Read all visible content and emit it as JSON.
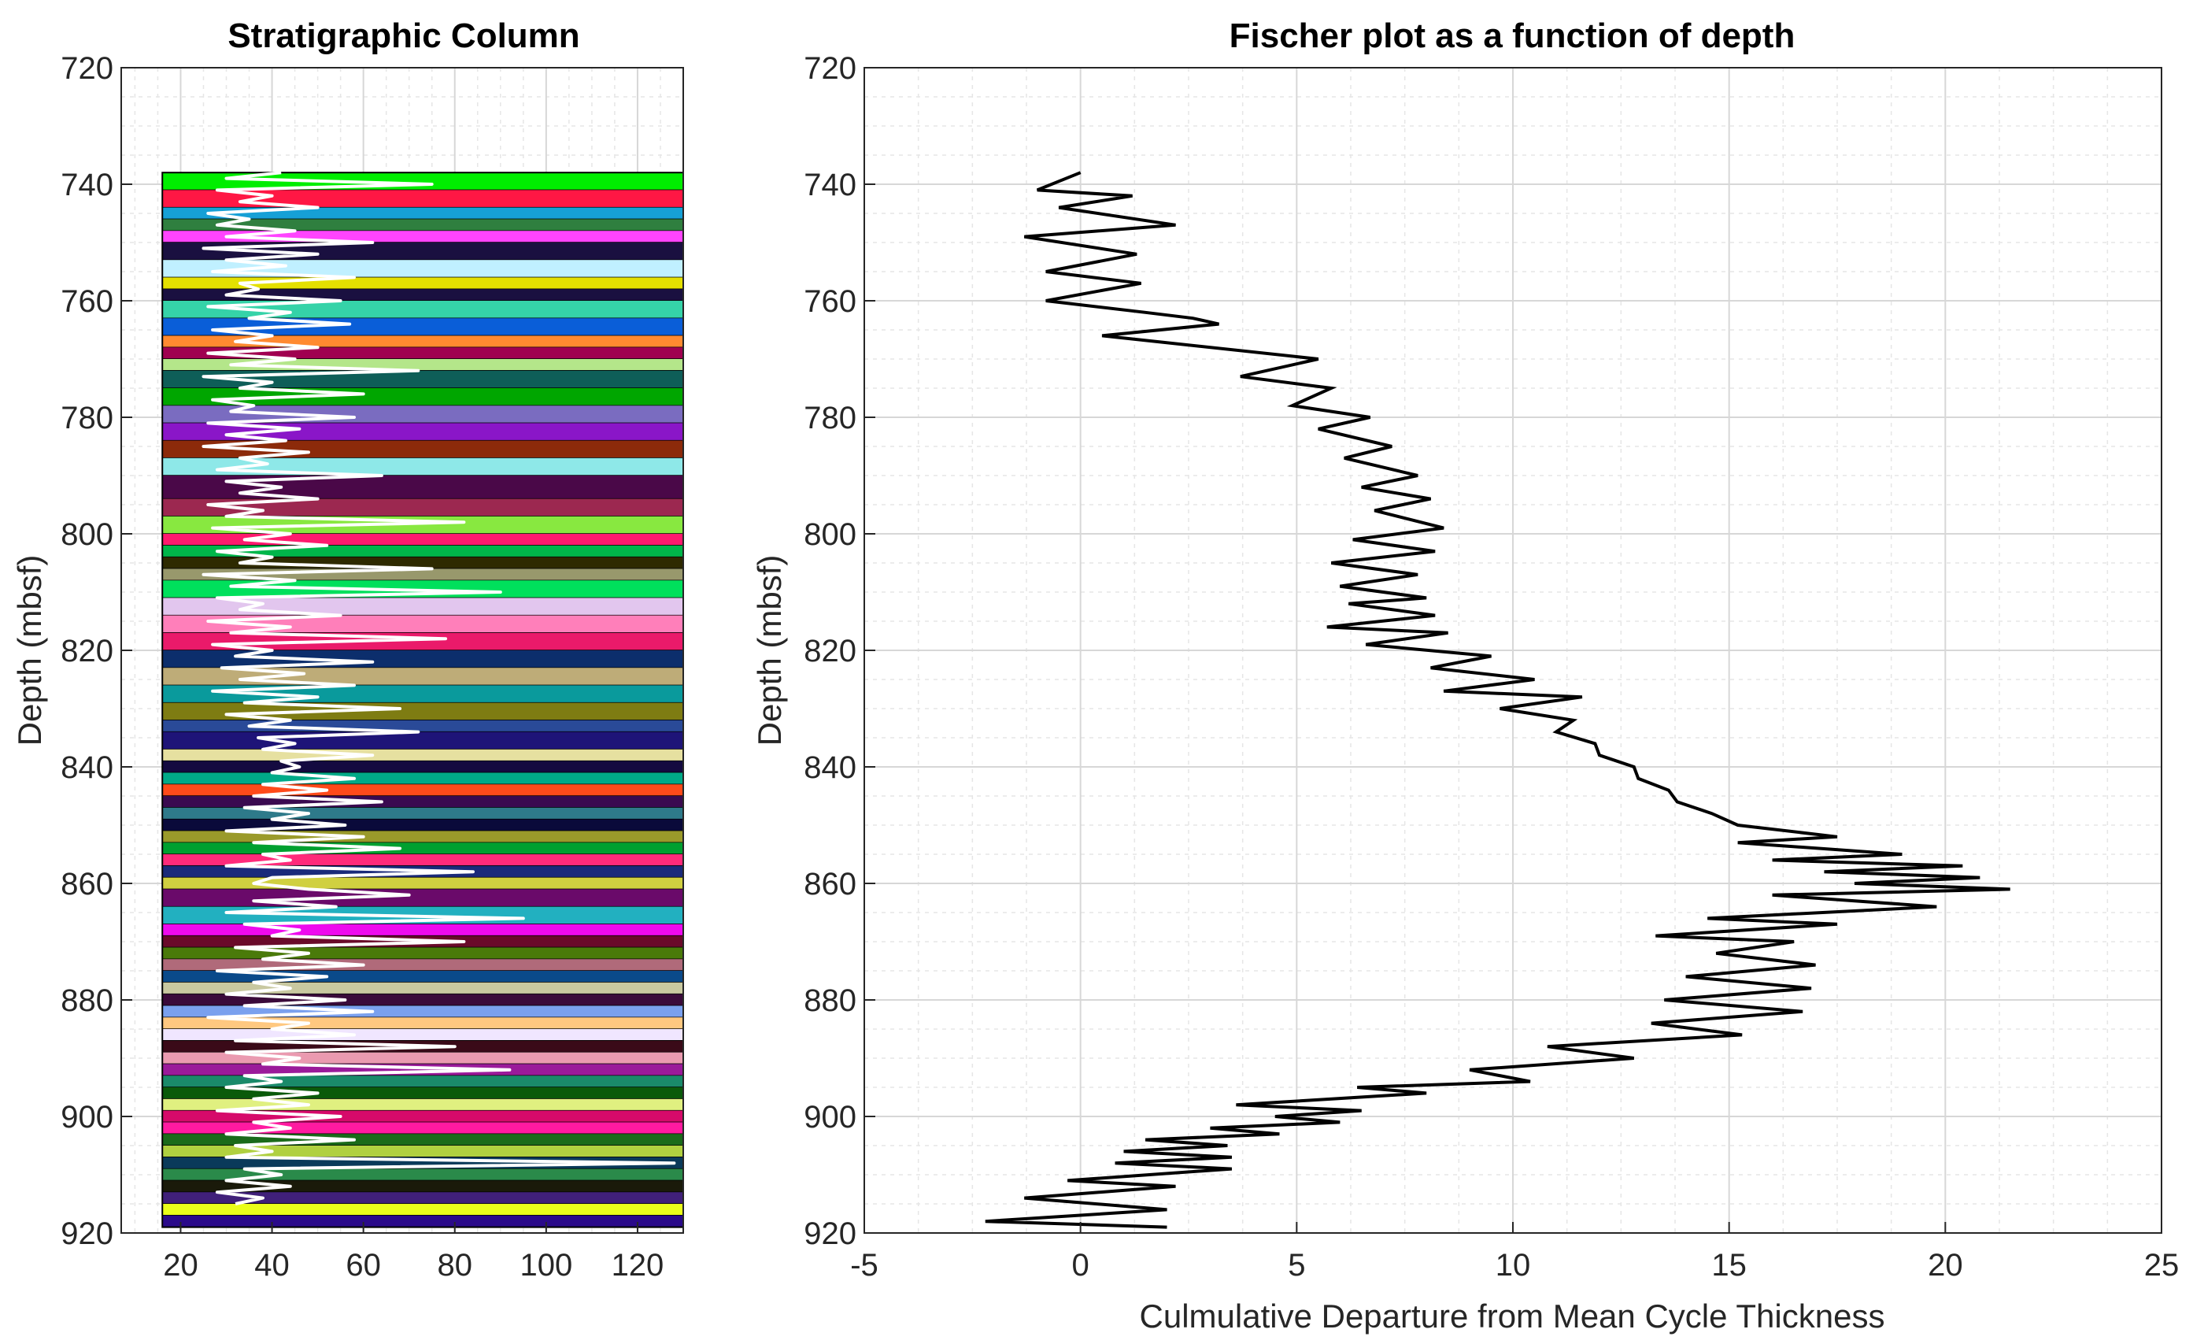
{
  "chart_data": [
    {
      "type": "bar",
      "title": "Stratigraphic Column",
      "xlabel": "",
      "ylabel": "Depth (mbsf)",
      "xlim": [
        7,
        130
      ],
      "ylim": [
        720,
        920
      ],
      "y_reversed": true,
      "xticks": [
        20,
        40,
        60,
        80,
        100,
        120
      ],
      "yticks": [
        720,
        740,
        760,
        780,
        800,
        820,
        840,
        860,
        880,
        900,
        920
      ],
      "grid": "on (major + minor dotted)",
      "beds": {
        "x_range": [
          16,
          136
        ],
        "top_depth": 738,
        "base_depth": 919,
        "boundaries": [
          738,
          741,
          744,
          746,
          748,
          750,
          753,
          756,
          758,
          760,
          763,
          766,
          768,
          770,
          772,
          775,
          778,
          781,
          784,
          787,
          790,
          794,
          797,
          800,
          802,
          804,
          806,
          808,
          811,
          814,
          817,
          820,
          823,
          826,
          829,
          832,
          834,
          837,
          839,
          841,
          843,
          845,
          847,
          849,
          851,
          853,
          855,
          857,
          859,
          861,
          864,
          867,
          869,
          871,
          873,
          875,
          877,
          879,
          881,
          883,
          885,
          887,
          889,
          891,
          893,
          895,
          897,
          899,
          901,
          903,
          905,
          907,
          909,
          911,
          913,
          915,
          917,
          919
        ],
        "colors": [
          "#00ee00",
          "#ff1744",
          "#16a0d6",
          "#2f7f3f",
          "#ff44ff",
          "#1a1040",
          "#c0f0ff",
          "#e4e000",
          "#1a1040",
          "#35d3a8",
          "#0a5ed8",
          "#ff8a30",
          "#a00050",
          "#b4e68a",
          "#0e5e58",
          "#00a600",
          "#7a6cc0",
          "#8a16c8",
          "#8c2a0a",
          "#8ee8e8",
          "#4a0848",
          "#9c2850",
          "#88e840",
          "#ff1a6e",
          "#00b64a",
          "#2e2a00",
          "#98986c",
          "#00e05c",
          "#e2c6ee",
          "#ff7fba",
          "#ea1a6a",
          "#0c2e6c",
          "#beac78",
          "#0a9a9c",
          "#7e7c12",
          "#2a4a98",
          "#1e1478",
          "#e6e0a0",
          "#140a40",
          "#00aa88",
          "#ff4a1a",
          "#3a0a50",
          "#2e7a8a",
          "#0a0a3a",
          "#9a9a2a",
          "#00a030",
          "#ff2a7a",
          "#1a2a7a",
          "#d0d040",
          "#6a0a6a",
          "#22b0c0",
          "#ee0aee",
          "#6a0a2a",
          "#4a7a0a",
          "#b06a7a",
          "#0a4a8a",
          "#c8c8a0",
          "#3a0a3a",
          "#7aa0ee",
          "#ffc880",
          "#f0e6ff",
          "#3a0a18",
          "#ea9ab0",
          "#9a1a9a",
          "#1a8a6a",
          "#0a5a0a",
          "#e0f080",
          "#d60a6a",
          "#ff1aa0",
          "#1a6a1a",
          "#b0d040",
          "#0a3a5a",
          "#2a8a4a",
          "#1a1a0a",
          "#40207a",
          "#eaff1a",
          "#2a0a8a"
        ]
      },
      "white_curve": {
        "depth": [
          738,
          739,
          740,
          741,
          742,
          743,
          744,
          745,
          746,
          747,
          748,
          749,
          750,
          751,
          752,
          753,
          754,
          755,
          756,
          757,
          758,
          759,
          760,
          761,
          762,
          763,
          764,
          765,
          766,
          767,
          768,
          769,
          770,
          771,
          772,
          773,
          774,
          775,
          776,
          777,
          778,
          779,
          780,
          781,
          782,
          783,
          784,
          785,
          786,
          787,
          788,
          789,
          790,
          791,
          792,
          793,
          794,
          795,
          796,
          797,
          798,
          799,
          800,
          801,
          802,
          803,
          804,
          805,
          806,
          807,
          808,
          809,
          810,
          811,
          812,
          813,
          814,
          815,
          816,
          817,
          818,
          819,
          820,
          821,
          822,
          823,
          824,
          825,
          826,
          827,
          828,
          829,
          830,
          831,
          832,
          833,
          834,
          835,
          836,
          837,
          838,
          839,
          840,
          841,
          842,
          843,
          844,
          845,
          846,
          847,
          848,
          849,
          850,
          851,
          852,
          853,
          854,
          855,
          856,
          857,
          858,
          859,
          860,
          861,
          862,
          863,
          864,
          865,
          866,
          867,
          868,
          869,
          870,
          871,
          872,
          873,
          874,
          875,
          876,
          877,
          878,
          879,
          880,
          881,
          882,
          883,
          884,
          885,
          886,
          887,
          888,
          889,
          890,
          891,
          892,
          893,
          894,
          895,
          896,
          897,
          898,
          899,
          900,
          901,
          902,
          903,
          904,
          905,
          906,
          907,
          908,
          909,
          910,
          911,
          912,
          913,
          914,
          915,
          916,
          917,
          918,
          919
        ],
        "value": [
          42,
          30,
          75,
          28,
          40,
          33,
          50,
          26,
          35,
          28,
          45,
          30,
          62,
          25,
          50,
          30,
          43,
          27,
          58,
          33,
          37,
          30,
          55,
          26,
          44,
          35,
          57,
          27,
          40,
          32,
          50,
          26,
          45,
          31,
          72,
          25,
          40,
          33,
          60,
          27,
          36,
          31,
          58,
          26,
          46,
          30,
          43,
          25,
          48,
          33,
          39,
          28,
          64,
          30,
          42,
          33,
          50,
          26,
          38,
          30,
          82,
          27,
          44,
          34,
          52,
          28,
          40,
          33,
          75,
          25,
          45,
          31,
          90,
          28,
          38,
          33,
          55,
          26,
          44,
          31,
          78,
          27,
          40,
          32,
          62,
          29,
          47,
          33,
          58,
          27,
          50,
          34,
          68,
          30,
          44,
          35,
          72,
          37,
          45,
          38,
          62,
          42,
          46,
          40,
          58,
          38,
          52,
          36,
          64,
          34,
          48,
          40,
          56,
          30,
          60,
          36,
          68,
          38,
          44,
          30,
          84,
          40,
          36,
          48,
          70,
          36,
          54,
          30,
          95,
          34,
          46,
          40,
          82,
          32,
          48,
          38,
          60,
          28,
          52,
          36,
          44,
          30,
          56,
          34,
          62,
          26,
          48,
          40,
          58,
          32,
          80,
          30,
          46,
          38,
          92,
          34,
          42,
          30,
          50,
          36,
          48,
          28,
          55,
          36,
          44,
          30,
          58,
          32,
          40,
          30,
          128,
          34,
          42,
          30,
          44,
          28,
          38,
          32
        ]
      }
    },
    {
      "type": "line",
      "title": "Fischer plot as a function of depth",
      "xlabel": "Culmulative Departure from Mean Cycle Thickness",
      "ylabel": "Depth (mbsf)",
      "xlim": [
        -5,
        25
      ],
      "ylim": [
        720,
        920
      ],
      "y_reversed": true,
      "xticks": [
        -5,
        0,
        5,
        10,
        15,
        20,
        25
      ],
      "yticks": [
        720,
        740,
        760,
        780,
        800,
        820,
        840,
        860,
        880,
        900,
        920
      ],
      "grid": "on (major + minor dotted)",
      "series": [
        {
          "x": [
            0,
            -1,
            1.2,
            -0.5,
            2.2,
            -1.3,
            1.3,
            -0.8,
            1.4,
            -0.8,
            1.5,
            2.6,
            3.2,
            0.5,
            5.5,
            3.7,
            5.8,
            4.9,
            6.7,
            5.5,
            7.2,
            6.1,
            7.8,
            6.5,
            8.1,
            6.8,
            8.4,
            6.3,
            8.2,
            5.8,
            7.8,
            6.0,
            8.0,
            6.2,
            8.2,
            5.7,
            8.5,
            6.6,
            9.5,
            8.1,
            10.5,
            8.4,
            11.6,
            9.7,
            11.4,
            11.0,
            11.9,
            12.0,
            12.8,
            12.9,
            13.6,
            13.8,
            14.6,
            15.2,
            17.5,
            15.2,
            19.0,
            16.0,
            20.4,
            17.2,
            20.8,
            17.9,
            21.5,
            16.0,
            19.8,
            14.5,
            17.5,
            13.3,
            16.5,
            14.7,
            17.0,
            14.0,
            16.9,
            13.5,
            16.7,
            13.2,
            15.3,
            10.8,
            12.8,
            9.0,
            10.4,
            6.4,
            8.0,
            3.6,
            6.5,
            4.5,
            6.0,
            3.0,
            4.6,
            1.5,
            3.4,
            1.0,
            3.5,
            0.8,
            3.5,
            -0.3,
            2.2,
            -1.3,
            2.0,
            -2.2,
            2.0
          ],
          "y": [
            738,
            741,
            742,
            744,
            747,
            749,
            752,
            755,
            757,
            760,
            762,
            763,
            764,
            766,
            770,
            773,
            775,
            778,
            780,
            782,
            785,
            787,
            790,
            792,
            794,
            796,
            799,
            801,
            803,
            805,
            807,
            809,
            811,
            812,
            814,
            816,
            817,
            819,
            821,
            823,
            825,
            827,
            828,
            830,
            832,
            834,
            836,
            838,
            840,
            842,
            844,
            846,
            848,
            850,
            852,
            853,
            855,
            856,
            857,
            858,
            859,
            860,
            861,
            862,
            864,
            866,
            867,
            869,
            870,
            872,
            874,
            876,
            878,
            880,
            882,
            884,
            886,
            888,
            890,
            892,
            894,
            895,
            896,
            898,
            899,
            900,
            901,
            902,
            903,
            904,
            905,
            906,
            907,
            908,
            909,
            911,
            912,
            914,
            916,
            918,
            919
          ]
        }
      ]
    }
  ]
}
